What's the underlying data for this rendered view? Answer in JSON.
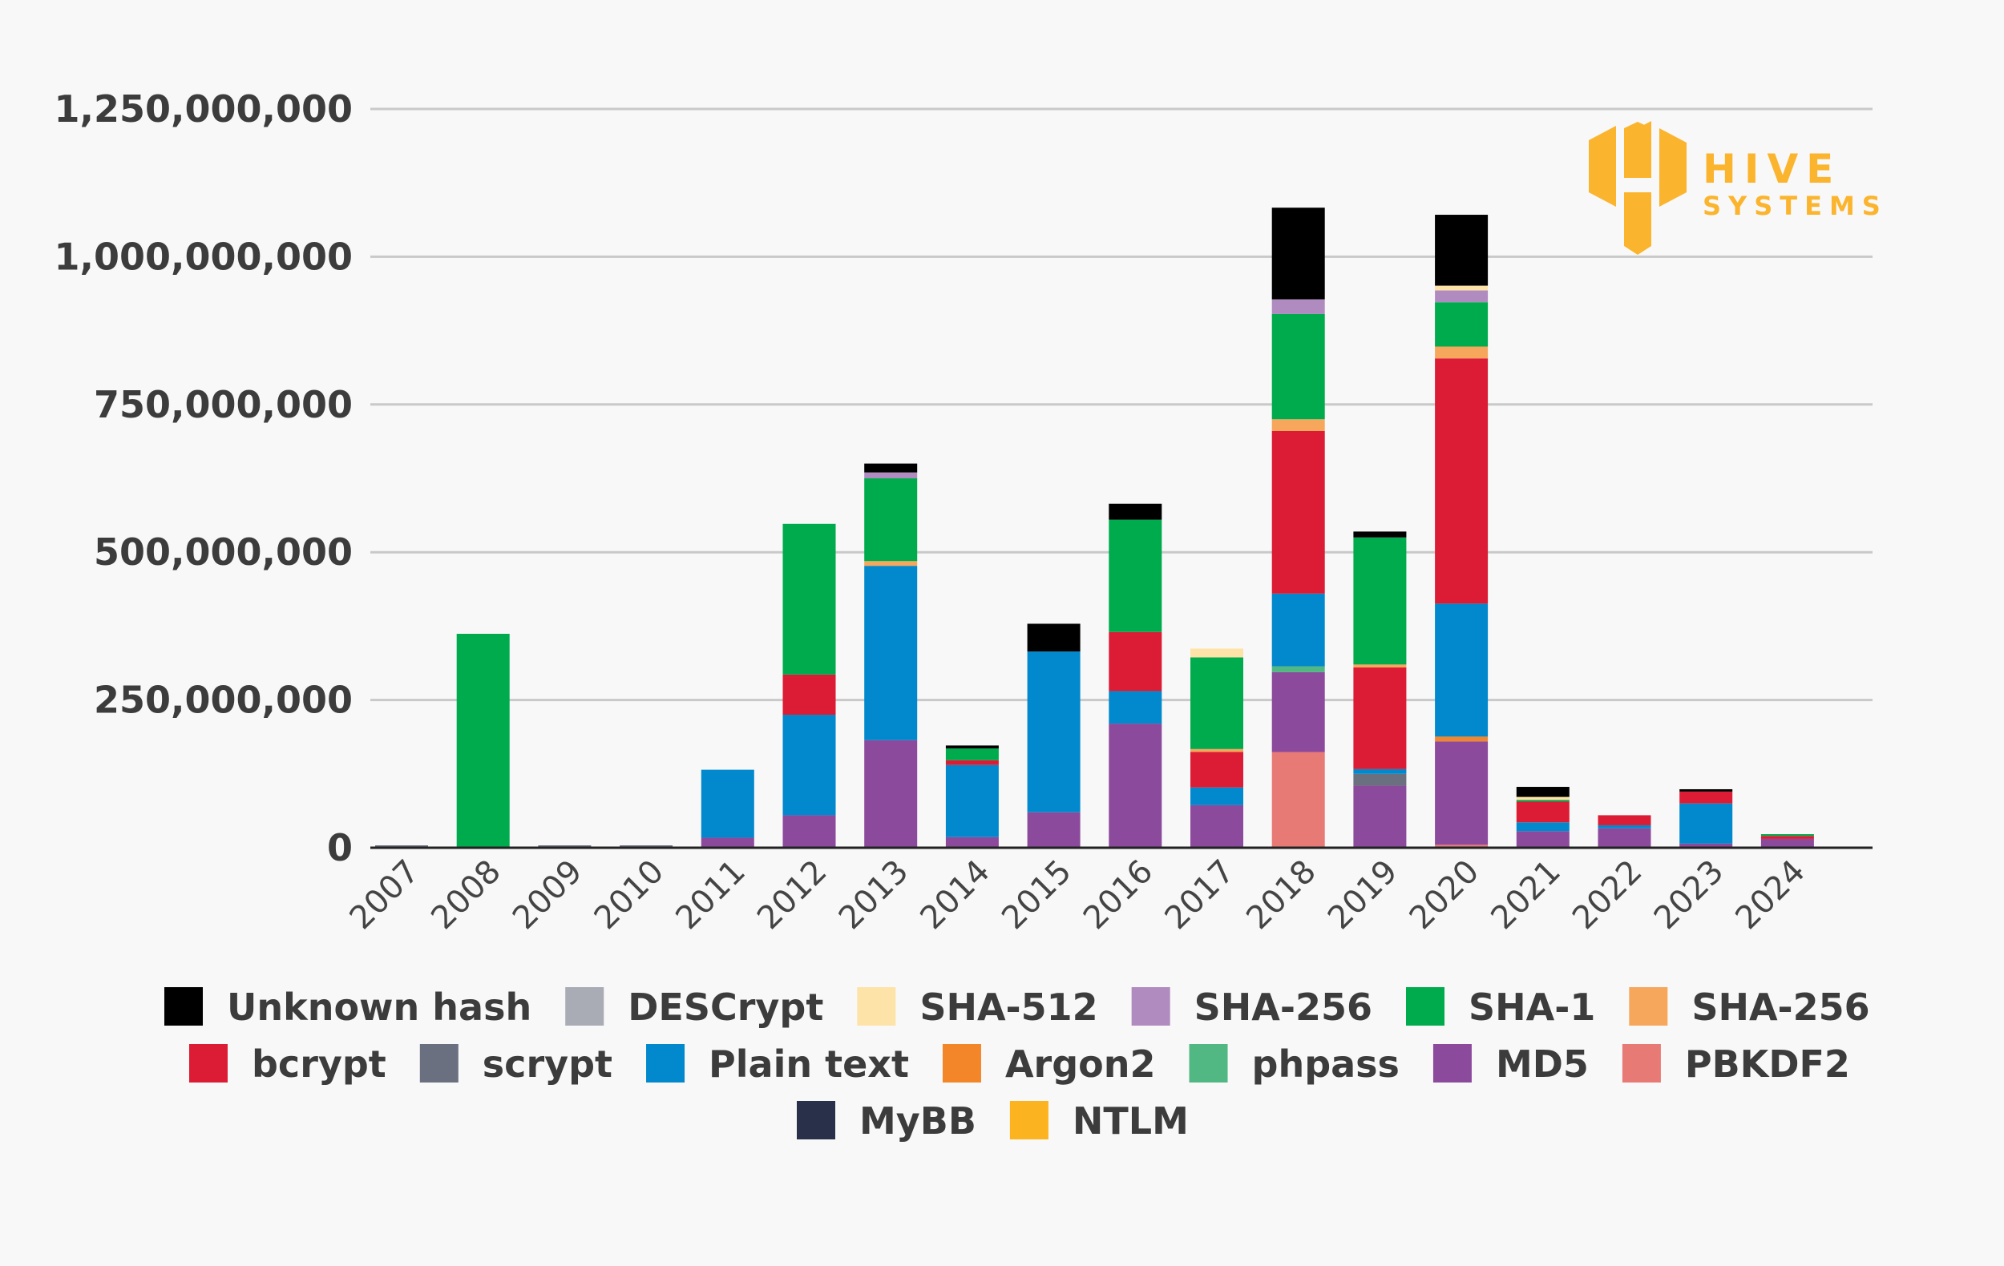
{
  "chart_data": {
    "type": "bar",
    "stacked": true,
    "categories": [
      "2007",
      "2008",
      "2009",
      "2010",
      "2011",
      "2012",
      "2013",
      "2014",
      "2015",
      "2016",
      "2017",
      "2018",
      "2019",
      "2020",
      "2021",
      "2022",
      "2023",
      "2024"
    ],
    "ylim": [
      0,
      1250000000
    ],
    "yticks": [
      "0",
      "250,000,000",
      "500,000,000",
      "750,000,000",
      "1,000,000,000",
      "1,250,000,000"
    ],
    "ytick_values": [
      0,
      250000000,
      500000000,
      750000000,
      1000000000,
      1250000000
    ],
    "grid": true,
    "legend_position": "bottom",
    "legend_rows": [
      [
        "Unknown hash",
        "DESCrypt",
        "SHA-512",
        "SHA-256 (light purple)",
        "SHA-1",
        "SHA-256 (orange)"
      ],
      [
        "bcrypt",
        "scrypt",
        "Plain text",
        "Argon2",
        "phpass",
        "MD5",
        "PBKDF2"
      ],
      [
        "MyBB",
        "NTLM"
      ]
    ],
    "stack_order": [
      "PBKDF2",
      "MD5",
      "phpass",
      "Argon2",
      "scrypt",
      "Plain text",
      "bcrypt",
      "SHA-256 (orange)",
      "SHA-1",
      "SHA-256 (light purple)",
      "SHA-512",
      "DESCrypt",
      "Unknown hash",
      "MyBB",
      "NTLM"
    ],
    "series": [
      {
        "key": "Unknown hash",
        "name": "Unknown hash",
        "color": "#000000",
        "values": [
          0,
          0,
          0,
          0,
          0,
          0,
          15000000,
          5000000,
          47000000,
          27000000,
          0,
          155000000,
          10000000,
          120000000,
          17000000,
          0,
          4000000,
          0
        ]
      },
      {
        "key": "DESCrypt",
        "name": "DESCrypt",
        "color": "#a9abb5",
        "values": [
          0,
          0,
          0,
          0,
          0,
          0,
          0,
          0,
          0,
          0,
          0,
          0,
          0,
          0,
          0,
          0,
          0,
          0
        ]
      },
      {
        "key": "SHA-512",
        "name": "SHA-512",
        "color": "#fde3a7",
        "values": [
          0,
          0,
          0,
          0,
          0,
          0,
          0,
          0,
          0,
          0,
          15000000,
          0,
          0,
          8000000,
          5000000,
          0,
          0,
          0
        ]
      },
      {
        "key": "SHA-256 (light purple)",
        "name": "SHA-256",
        "color": "#b08bc0",
        "values": [
          0,
          0,
          0,
          0,
          0,
          0,
          10000000,
          0,
          0,
          0,
          0,
          25000000,
          0,
          20000000,
          0,
          0,
          0,
          0
        ]
      },
      {
        "key": "SHA-1",
        "name": "SHA-1",
        "color": "#00ab4e",
        "values": [
          0,
          362000000,
          0,
          0,
          0,
          255000000,
          140000000,
          20000000,
          0,
          190000000,
          155000000,
          178000000,
          215000000,
          75000000,
          3000000,
          0,
          0,
          3000000
        ]
      },
      {
        "key": "SHA-256 (orange)",
        "name": "SHA-256",
        "color": "#f6a75c",
        "values": [
          0,
          0,
          0,
          0,
          0,
          0,
          8000000,
          0,
          0,
          0,
          5000000,
          20000000,
          5000000,
          20000000,
          0,
          0,
          0,
          0
        ]
      },
      {
        "key": "bcrypt",
        "name": "bcrypt",
        "color": "#dc1c34",
        "values": [
          0,
          0,
          0,
          0,
          0,
          68000000,
          0,
          8000000,
          0,
          100000000,
          60000000,
          275000000,
          172000000,
          415000000,
          35000000,
          17000000,
          20000000,
          5000000
        ]
      },
      {
        "key": "scrypt",
        "name": "scrypt",
        "color": "#6b7080",
        "values": [
          0,
          0,
          0,
          0,
          0,
          0,
          0,
          0,
          0,
          0,
          0,
          0,
          20000000,
          0,
          0,
          0,
          0,
          0
        ]
      },
      {
        "key": "Plain text",
        "name": "Plain text",
        "color": "#0288cc",
        "values": [
          0,
          0,
          0,
          0,
          115000000,
          170000000,
          295000000,
          122000000,
          272000000,
          55000000,
          30000000,
          123000000,
          8000000,
          225000000,
          15000000,
          5000000,
          68000000,
          0
        ]
      },
      {
        "key": "Argon2",
        "name": "Argon2",
        "color": "#f4862a",
        "values": [
          0,
          0,
          0,
          0,
          0,
          0,
          0,
          0,
          0,
          0,
          0,
          0,
          0,
          8000000,
          0,
          0,
          0,
          0
        ]
      },
      {
        "key": "phpass",
        "name": "phpass",
        "color": "#52b883",
        "values": [
          0,
          0,
          0,
          0,
          0,
          0,
          0,
          0,
          0,
          0,
          0,
          10000000,
          0,
          0,
          0,
          0,
          0,
          0
        ]
      },
      {
        "key": "MD5",
        "name": "MD5",
        "color": "#8b4a9c",
        "values": [
          0,
          0,
          0,
          0,
          17000000,
          55000000,
          182000000,
          18000000,
          60000000,
          210000000,
          72000000,
          135000000,
          105000000,
          175000000,
          28000000,
          33000000,
          7000000,
          15000000
        ]
      },
      {
        "key": "PBKDF2",
        "name": "PBKDF2",
        "color": "#e87a76",
        "values": [
          0,
          0,
          0,
          0,
          0,
          0,
          0,
          0,
          0,
          0,
          0,
          162000000,
          0,
          5000000,
          0,
          0,
          0,
          0
        ]
      },
      {
        "key": "MyBB",
        "name": "MyBB",
        "color": "#283149",
        "values": [
          0,
          0,
          0,
          0,
          0,
          0,
          0,
          0,
          0,
          0,
          0,
          0,
          0,
          0,
          0,
          0,
          0,
          0
        ]
      },
      {
        "key": "NTLM",
        "name": "NTLM",
        "color": "#fbb31f",
        "values": [
          0,
          0,
          0,
          0,
          0,
          0,
          0,
          0,
          0,
          0,
          0,
          0,
          0,
          0,
          0,
          0,
          0,
          0
        ]
      }
    ]
  },
  "logo": {
    "line1": "HIVE",
    "line2": "SYSTEMS",
    "color": "#fbb42d"
  }
}
